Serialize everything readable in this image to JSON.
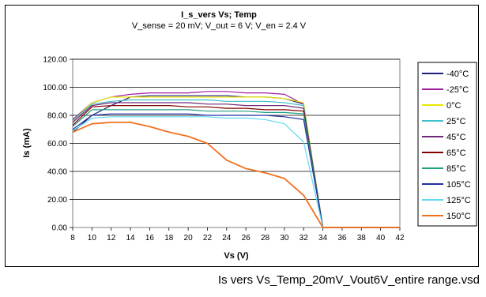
{
  "caption": "Is vers Vs_Temp_20mV_Vout6V_entire range.vsd",
  "chart_data": {
    "type": "line",
    "title": "I_s_vers Vs; Temp",
    "subtitle": "V_sense = 20 mV; V_out = 6 V; V_en = 2.4 V",
    "xlabel": "Vs (V)",
    "ylabel": "Is (mA)",
    "xlim": [
      8,
      42
    ],
    "ylim": [
      0,
      120
    ],
    "xticks": [
      "8",
      "10",
      "12",
      "14",
      "16",
      "18",
      "20",
      "22",
      "24",
      "26",
      "28",
      "30",
      "32",
      "34",
      "36",
      "38",
      "40",
      "42"
    ],
    "yticks": [
      "0.00",
      "20.00",
      "40.00",
      "60.00",
      "80.00",
      "100.00",
      "120.00"
    ],
    "grid": "horizontal",
    "legend": "right",
    "x": [
      8,
      10,
      12,
      14,
      16,
      18,
      20,
      22,
      24,
      26,
      28,
      30,
      32,
      34,
      36,
      38,
      40,
      42
    ],
    "series": [
      {
        "name": "-40°C",
        "color": "#1f1f7a",
        "values": [
          68,
          80,
          87,
          93,
          94,
          94,
          94,
          94,
          94,
          93,
          93,
          92,
          88,
          0,
          0,
          0,
          0,
          0
        ]
      },
      {
        "name": "-25°C",
        "color": "#a020a0",
        "values": [
          77,
          89,
          93,
          95,
          96,
          96,
          96,
          97,
          97,
          96,
          96,
          95,
          88,
          0,
          0,
          0,
          0,
          0
        ]
      },
      {
        "name": "0°C",
        "color": "#e8e800",
        "values": [
          76,
          89,
          93,
          93,
          93,
          93,
          93,
          93,
          93,
          93,
          93,
          92,
          89,
          0,
          0,
          0,
          0,
          0
        ]
      },
      {
        "name": "25°C",
        "color": "#40c0c8",
        "values": [
          76,
          88,
          90,
          91,
          91,
          91,
          91,
          91,
          90,
          90,
          90,
          89,
          87,
          0,
          0,
          0,
          0,
          0
        ]
      },
      {
        "name": "45°C",
        "color": "#702878",
        "values": [
          75,
          87,
          89,
          89,
          89,
          89,
          89,
          88,
          88,
          87,
          87,
          87,
          85,
          0,
          0,
          0,
          0,
          0
        ]
      },
      {
        "name": "65°C",
        "color": "#800000",
        "values": [
          73,
          86,
          87,
          87,
          87,
          87,
          86,
          86,
          85,
          85,
          84,
          84,
          83,
          0,
          0,
          0,
          0,
          0
        ]
      },
      {
        "name": "85°C",
        "color": "#20a080",
        "values": [
          72,
          84,
          84,
          84,
          84,
          84,
          84,
          83,
          83,
          83,
          82,
          82,
          81,
          0,
          0,
          0,
          0,
          0
        ]
      },
      {
        "name": "105°C",
        "color": "#2030a0",
        "values": [
          70,
          80,
          81,
          81,
          81,
          81,
          81,
          80,
          80,
          80,
          80,
          79,
          77,
          0,
          0,
          0,
          0,
          0
        ]
      },
      {
        "name": "125°C",
        "color": "#60d8f0",
        "values": [
          69,
          78,
          79,
          79,
          79,
          79,
          79,
          79,
          78,
          78,
          77,
          74,
          61,
          0,
          0,
          0,
          0,
          0
        ]
      },
      {
        "name": "150°C",
        "color": "#f07020",
        "values": [
          68,
          74,
          75,
          75,
          72,
          68,
          65,
          60,
          48,
          42,
          39,
          35,
          23,
          0,
          0,
          0,
          0,
          0
        ]
      }
    ]
  }
}
